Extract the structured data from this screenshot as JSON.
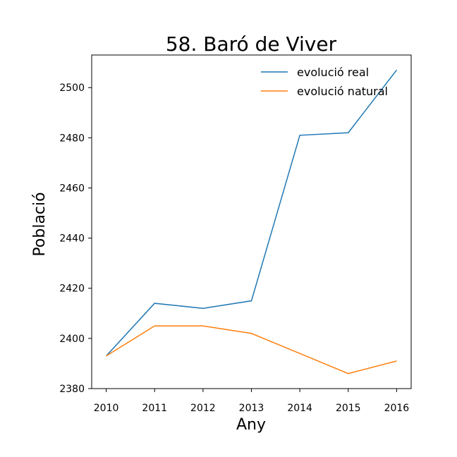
{
  "chart_data": {
    "type": "line",
    "title": "58. Baró de Viver",
    "xlabel": "Any",
    "ylabel": "Població",
    "x": [
      2010,
      2011,
      2012,
      2013,
      2014,
      2015,
      2016
    ],
    "x_ticks": [
      "2010",
      "2011",
      "2012",
      "2013",
      "2014",
      "2015",
      "2016"
    ],
    "y_ticks": [
      2380,
      2400,
      2420,
      2440,
      2460,
      2480,
      2500
    ],
    "ylim": [
      2380,
      2513
    ],
    "xlim": [
      2009.7,
      2016.3
    ],
    "grid": false,
    "legend_position": "top-right",
    "series": [
      {
        "name": "evolució real",
        "color": "#1f77b4",
        "values": [
          2393,
          2414,
          2412,
          2415,
          2481,
          2482,
          2507
        ]
      },
      {
        "name": "evolució natural",
        "color": "#ff7f0e",
        "values": [
          2393,
          2405,
          2405,
          2402,
          2394,
          2386,
          2391
        ]
      }
    ]
  }
}
